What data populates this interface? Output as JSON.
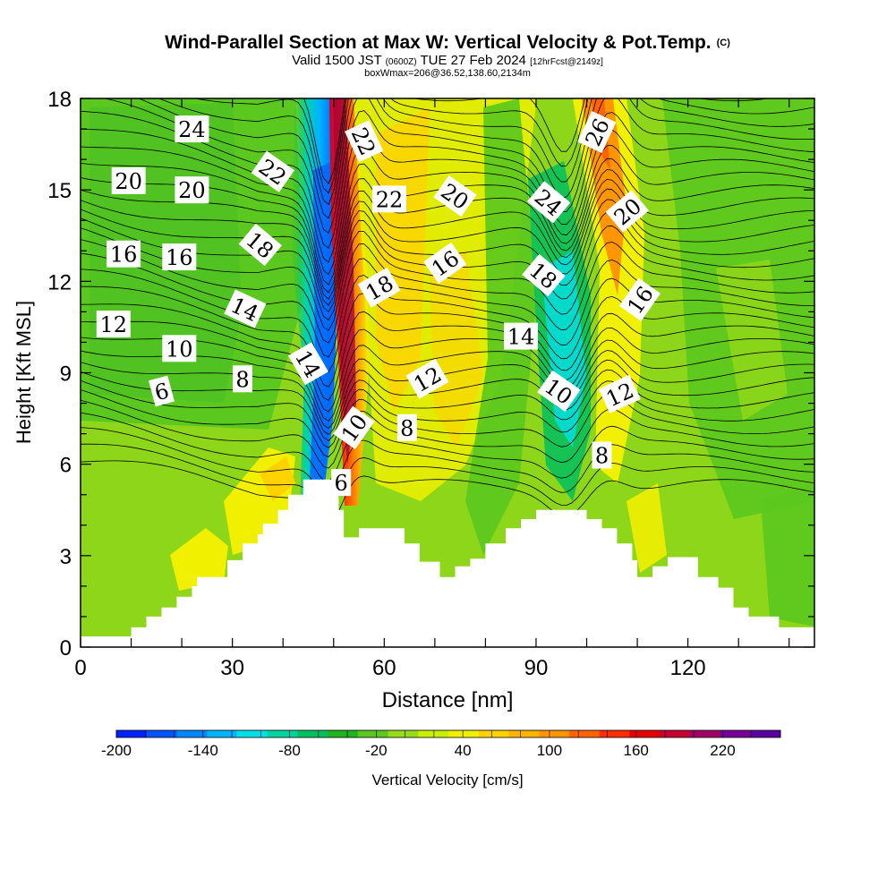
{
  "title": {
    "main": "Wind-Parallel Section at Max W: Vertical Velocity & Pot.Temp.",
    "copyright": "(C)",
    "valid_prefix": "Valid 1500 JST",
    "valid_utc": "(0600Z)",
    "valid_date": "TUE 27 Feb 2024",
    "forecast": "[12hrFcst@2149z]",
    "box_info": "boxWmax=206@36.52,138.60,2134m"
  },
  "colors": {
    "colorbar": [
      "#0022ff",
      "#0055ff",
      "#0088ff",
      "#00b4ff",
      "#00e0e8",
      "#00d4a0",
      "#00c060",
      "#1fb41f",
      "#5ac81e",
      "#96dc19",
      "#c8f000",
      "#f0f000",
      "#ffd200",
      "#ffb400",
      "#ff9600",
      "#ff6400",
      "#ff2d00",
      "#e60000",
      "#c80032",
      "#a00064",
      "#780096",
      "#5a00a0"
    ]
  },
  "chart_data": {
    "type": "heatmap",
    "description_fields": "shaded field = vertical velocity (cm/s); black contours = potential temperature labels",
    "xlabel": "Distance [nm]",
    "ylabel": "Height [Kft MSL]",
    "xlim": [
      0,
      145
    ],
    "ylim": [
      0,
      18
    ],
    "xticks": [
      0,
      30,
      60,
      90,
      120
    ],
    "yticks": [
      0,
      3,
      6,
      9,
      12,
      15,
      18
    ],
    "colorbar": {
      "label": "Vertical Velocity [cm/s]",
      "min": -200,
      "max": 260,
      "step": 20,
      "tick_labels": [
        -200,
        -140,
        -80,
        -20,
        40,
        100,
        160,
        220
      ]
    },
    "terrain": [
      [
        0,
        0.35
      ],
      [
        10,
        0.35
      ],
      [
        10,
        0.65
      ],
      [
        13,
        0.65
      ],
      [
        13,
        1.0
      ],
      [
        16,
        1.0
      ],
      [
        16,
        1.3
      ],
      [
        19,
        1.3
      ],
      [
        19,
        1.65
      ],
      [
        22,
        1.65
      ],
      [
        22,
        2.0
      ],
      [
        23,
        2.0
      ],
      [
        23,
        2.3
      ],
      [
        29,
        2.3
      ],
      [
        29,
        2.85
      ],
      [
        32,
        2.85
      ],
      [
        32,
        3.4
      ],
      [
        35,
        3.4
      ],
      [
        35,
        3.7
      ],
      [
        36,
        3.7
      ],
      [
        36,
        4.05
      ],
      [
        39,
        4.05
      ],
      [
        39,
        4.5
      ],
      [
        41,
        4.5
      ],
      [
        41,
        5.0
      ],
      [
        44,
        5.0
      ],
      [
        44,
        5.5
      ],
      [
        48,
        5.5
      ],
      [
        48,
        5.5
      ],
      [
        51,
        5.5
      ],
      [
        51,
        4.5
      ],
      [
        52,
        4.5
      ],
      [
        52,
        3.6
      ],
      [
        55,
        3.6
      ],
      [
        55,
        3.9
      ],
      [
        64,
        3.9
      ],
      [
        64,
        3.4
      ],
      [
        67,
        3.4
      ],
      [
        67,
        2.8
      ],
      [
        71,
        2.8
      ],
      [
        71,
        2.3
      ],
      [
        74,
        2.3
      ],
      [
        74,
        2.65
      ],
      [
        77,
        2.65
      ],
      [
        77,
        2.9
      ],
      [
        80,
        2.9
      ],
      [
        80,
        3.4
      ],
      [
        84,
        3.4
      ],
      [
        84,
        3.9
      ],
      [
        87,
        3.9
      ],
      [
        87,
        4.2
      ],
      [
        90,
        4.2
      ],
      [
        90,
        4.5
      ],
      [
        100,
        4.5
      ],
      [
        100,
        4.2
      ],
      [
        103,
        4.2
      ],
      [
        103,
        3.9
      ],
      [
        106,
        3.9
      ],
      [
        106,
        3.4
      ],
      [
        109,
        3.4
      ],
      [
        109,
        2.85
      ],
      [
        110,
        2.85
      ],
      [
        110,
        2.3
      ],
      [
        113,
        2.3
      ],
      [
        113,
        2.65
      ],
      [
        116,
        2.65
      ],
      [
        116,
        2.95
      ],
      [
        122,
        2.95
      ],
      [
        122,
        2.3
      ],
      [
        126,
        2.3
      ],
      [
        126,
        1.95
      ],
      [
        129,
        1.95
      ],
      [
        129,
        1.3
      ],
      [
        132,
        1.3
      ],
      [
        132,
        1.0
      ],
      [
        138,
        1.0
      ],
      [
        138,
        0.65
      ],
      [
        145,
        0.65
      ]
    ],
    "theta_labels": [
      {
        "text": "24",
        "x": 22,
        "y": 17.0,
        "r": 0
      },
      {
        "text": "22",
        "x": 38,
        "y": 15.6,
        "r": 35
      },
      {
        "text": "22",
        "x": 56,
        "y": 16.6,
        "r": 65
      },
      {
        "text": "26",
        "x": 102,
        "y": 16.9,
        "r": -65
      },
      {
        "text": "20",
        "x": 9.5,
        "y": 15.3,
        "r": 0
      },
      {
        "text": "20",
        "x": 22,
        "y": 15.0,
        "r": 0
      },
      {
        "text": "22",
        "x": 61,
        "y": 14.7,
        "r": 0
      },
      {
        "text": "20",
        "x": 74,
        "y": 14.8,
        "r": 35
      },
      {
        "text": "24",
        "x": 92.5,
        "y": 14.6,
        "r": 40
      },
      {
        "text": "20",
        "x": 108,
        "y": 14.3,
        "r": -40
      },
      {
        "text": "16",
        "x": 8.5,
        "y": 12.9,
        "r": 0
      },
      {
        "text": "16",
        "x": 19.5,
        "y": 12.8,
        "r": 0
      },
      {
        "text": "18",
        "x": 35.5,
        "y": 13.2,
        "r": 40
      },
      {
        "text": "16",
        "x": 72,
        "y": 12.6,
        "r": -35
      },
      {
        "text": "18",
        "x": 91.5,
        "y": 12.2,
        "r": 40
      },
      {
        "text": "18",
        "x": 59,
        "y": 11.8,
        "r": -30
      },
      {
        "text": "16",
        "x": 110.5,
        "y": 11.4,
        "r": -55
      },
      {
        "text": "12",
        "x": 6.5,
        "y": 10.6,
        "r": 0
      },
      {
        "text": "14",
        "x": 32.5,
        "y": 11.1,
        "r": 25
      },
      {
        "text": "14",
        "x": 87,
        "y": 10.2,
        "r": 0
      },
      {
        "text": "10",
        "x": 19.5,
        "y": 9.8,
        "r": 0
      },
      {
        "text": "14",
        "x": 45,
        "y": 9.3,
        "r": 60
      },
      {
        "text": "8",
        "x": 32,
        "y": 8.8,
        "r": 0
      },
      {
        "text": "12",
        "x": 68.5,
        "y": 8.8,
        "r": -30
      },
      {
        "text": "6",
        "x": 16,
        "y": 8.4,
        "r": -15
      },
      {
        "text": "10",
        "x": 94.5,
        "y": 8.4,
        "r": 35
      },
      {
        "text": "12",
        "x": 106.5,
        "y": 8.3,
        "r": -25
      },
      {
        "text": "10",
        "x": 54,
        "y": 7.2,
        "r": -55
      },
      {
        "text": "8",
        "x": 64.5,
        "y": 7.2,
        "r": 0
      },
      {
        "text": "8",
        "x": 103,
        "y": 6.3,
        "r": 0
      },
      {
        "text": "6",
        "x": 51.5,
        "y": 5.4,
        "r": 0
      }
    ]
  }
}
